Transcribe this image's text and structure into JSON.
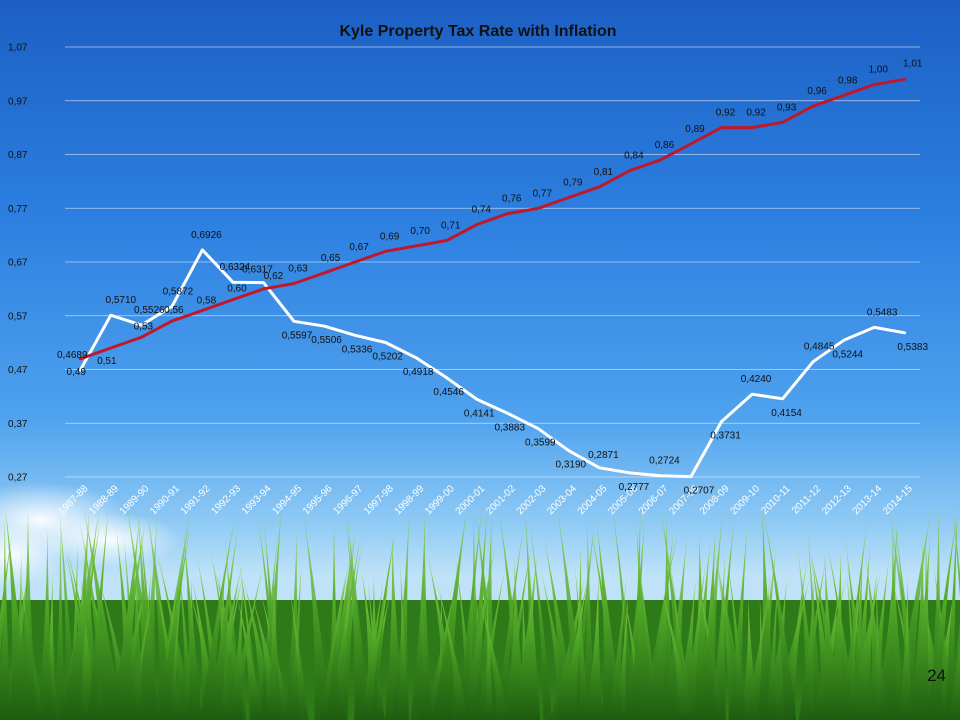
{
  "slide_number": "24",
  "chart_data": {
    "type": "line",
    "title": "Kyle Property Tax Rate with Inflation",
    "xlabel": "",
    "ylabel": "",
    "ylim": [
      0.27,
      1.07
    ],
    "yticks": [
      "0,27",
      "0,37",
      "0,47",
      "0,57",
      "0,67",
      "0,77",
      "0,87",
      "0,97",
      "1,07"
    ],
    "grid": true,
    "legend": "none",
    "categories": [
      "1987-88",
      "1988-89",
      "1989-90",
      "1990-91",
      "1991-92",
      "1992-93",
      "1993-94",
      "1994-95",
      "1995-96",
      "1996-97",
      "1997-98",
      "1998-99",
      "1999-00",
      "2000-01",
      "2001-02",
      "2002-03",
      "2003-04",
      "2004-05",
      "2005-06",
      "2006-07",
      "2007-08",
      "2008-09",
      "2009-10",
      "2010-11",
      "2011-12",
      "2012-13",
      "2013-14",
      "2014-15"
    ],
    "series": [
      {
        "color": "#ffffff",
        "values": [
          0.4689,
          0.571,
          0.5526,
          0.5872,
          0.6926,
          0.6324,
          0.6317,
          0.5597,
          0.5506,
          0.5336,
          0.5202,
          0.4918,
          0.4546,
          0.4141,
          0.3883,
          0.3599,
          0.319,
          0.2871,
          0.2777,
          0.2724,
          0.2707,
          0.3731,
          0.424,
          0.4154,
          0.4845,
          0.5244,
          0.5483,
          0.5383
        ],
        "labels": [
          "0,4689",
          "0,5710",
          "0,5526",
          "0,5872",
          "0,6926",
          "0,6324",
          "0,6317",
          "0,5597",
          "0,5506",
          "0,5336",
          "0,5202",
          "0,4918",
          "0,4546",
          "0,4141",
          "0,3883",
          "0,3599",
          "0,3190",
          "0,2871",
          "0,2777",
          "0,2724",
          "0,2707",
          "0,3731",
          "0,4240",
          "0,4154",
          "0,4845",
          "0,5244",
          "0,5483",
          "0,5383"
        ]
      },
      {
        "color": "#c0182a",
        "values": [
          0.49,
          0.51,
          0.53,
          0.56,
          0.58,
          0.6,
          0.62,
          0.63,
          0.65,
          0.67,
          0.69,
          0.7,
          0.71,
          0.74,
          0.76,
          0.77,
          0.79,
          0.81,
          0.84,
          0.86,
          0.89,
          0.92,
          0.92,
          0.93,
          0.96,
          0.98,
          1.0,
          1.01
        ],
        "labels": [
          "0,49",
          "0,51",
          "0,53",
          "0,56",
          "0,58",
          "0,60",
          "0,62",
          "0,63",
          "0,65",
          "0,67",
          "0,69",
          "0,70",
          "0,71",
          "0,74",
          "0,76",
          "0,77",
          "0,79",
          "0,81",
          "0,84",
          "0,86",
          "0,89",
          "0,92",
          "0,92",
          "0,93",
          "0,96",
          "0,98",
          "1,00",
          "1,01"
        ]
      }
    ]
  }
}
